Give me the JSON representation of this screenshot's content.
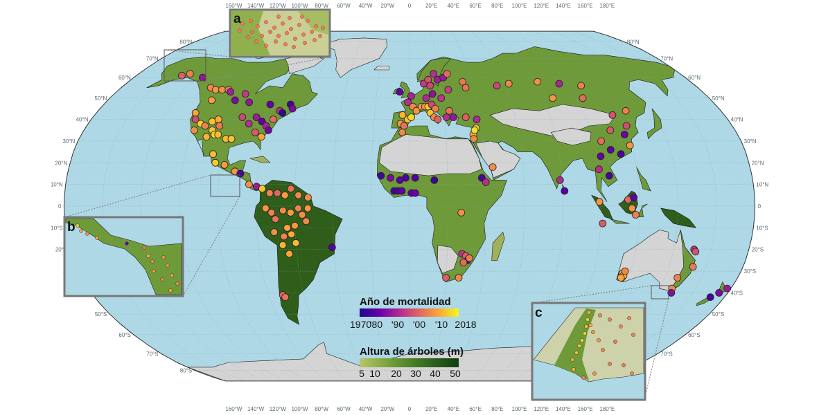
{
  "map": {
    "projection": "Robinson",
    "colors": {
      "ocean": "#aed8e6",
      "land_bare": "#d4d4d4",
      "forest_low": "#9fb25a",
      "forest_mid": "#6e9a3a",
      "forest_high": "#2f5e1a",
      "borders": "#1a1a1a",
      "graticule": "#7fa3b1",
      "inset_frame": "#777777"
    },
    "graticule": {
      "longitude_labels": [
        "160°W",
        "140°W",
        "120°W",
        "100°W",
        "80°W",
        "60°W",
        "40°W",
        "20°W",
        "0",
        "20°E",
        "40°E",
        "60°E",
        "80°E",
        "100°E",
        "120°E",
        "140°E",
        "160°E",
        "180°E"
      ],
      "latitude_labels": [
        "80°N",
        "70°N",
        "60°N",
        "50°N",
        "40°N",
        "30°N",
        "20°N",
        "10°N",
        "0",
        "10°S",
        "20°S",
        "30°S",
        "40°S",
        "50°S",
        "60°S",
        "70°S",
        "80°S"
      ]
    }
  },
  "insets": [
    {
      "letter": "a",
      "region": "southern Canada / Rocky Mountains"
    },
    {
      "letter": "b",
      "region": "Central America / Panama"
    },
    {
      "letter": "c",
      "region": "southwest Australia"
    }
  ],
  "legend_mortality": {
    "title": "Año de mortalidad",
    "ticks": [
      "1970",
      "'80",
      "'90",
      "'00",
      "'10",
      "2018"
    ],
    "colors": [
      "#1a0b8c",
      "#6a00a8",
      "#b12a90",
      "#e16462",
      "#fca636",
      "#f0f921"
    ]
  },
  "legend_height": {
    "title": "Altura de árboles (m)",
    "ticks": [
      "5",
      "10",
      "20",
      "30",
      "40",
      "50"
    ],
    "colors": [
      "#b9c46a",
      "#8cae46",
      "#5f9232",
      "#3f7622",
      "#27591a",
      "#0f3d0e"
    ]
  },
  "sites": [
    {
      "lon": -150,
      "lat": 61,
      "year": 1998
    },
    {
      "lon": -146,
      "lat": 62,
      "year": 2003
    },
    {
      "lon": -135,
      "lat": 60,
      "year": 1985
    },
    {
      "lon": -124,
      "lat": 55,
      "year": 2004
    },
    {
      "lon": -120,
      "lat": 54,
      "year": 2006
    },
    {
      "lon": -116,
      "lat": 54,
      "year": 2005
    },
    {
      "lon": -112,
      "lat": 54,
      "year": 2003
    },
    {
      "lon": -110,
      "lat": 53,
      "year": 1987
    },
    {
      "lon": -100,
      "lat": 52,
      "year": 1992
    },
    {
      "lon": -118,
      "lat": 49,
      "year": 2007
    },
    {
      "lon": -104,
      "lat": 49,
      "year": 1982
    },
    {
      "lon": -95,
      "lat": 48,
      "year": 1985
    },
    {
      "lon": -82,
      "lat": 47,
      "year": 1979
    },
    {
      "lon": -70,
      "lat": 47,
      "year": 1975
    },
    {
      "lon": -75,
      "lat": 44,
      "year": 1990
    },
    {
      "lon": -123,
      "lat": 43,
      "year": 2008
    },
    {
      "lon": -121,
      "lat": 40,
      "year": 1995
    },
    {
      "lon": -117,
      "lat": 38,
      "year": 2013
    },
    {
      "lon": -114,
      "lat": 37,
      "year": 2003
    },
    {
      "lon": -111,
      "lat": 39,
      "year": 2012
    },
    {
      "lon": -108,
      "lat": 40,
      "year": 2009
    },
    {
      "lon": -106,
      "lat": 37,
      "year": 2002
    },
    {
      "lon": -109,
      "lat": 35,
      "year": 2012
    },
    {
      "lon": -107,
      "lat": 33,
      "year": 2014
    },
    {
      "lon": -105,
      "lat": 33,
      "year": 2011
    },
    {
      "lon": -111,
      "lat": 32,
      "year": 2010
    },
    {
      "lon": -119,
      "lat": 35,
      "year": 2005
    },
    {
      "lon": -100,
      "lat": 31,
      "year": 2011
    },
    {
      "lon": -97,
      "lat": 31,
      "year": 2012
    },
    {
      "lon": -95,
      "lat": 41,
      "year": 1994
    },
    {
      "lon": -90,
      "lat": 38,
      "year": 1990
    },
    {
      "lon": -87,
      "lat": 41,
      "year": 1986
    },
    {
      "lon": -83,
      "lat": 39,
      "year": 1978
    },
    {
      "lon": -80,
      "lat": 37,
      "year": 1988
    },
    {
      "lon": -77,
      "lat": 40,
      "year": 2000
    },
    {
      "lon": -73,
      "lat": 43,
      "year": 1972
    },
    {
      "lon": -68,
      "lat": 45,
      "year": 1982
    },
    {
      "lon": -85,
      "lat": 34,
      "year": 1997
    },
    {
      "lon": -81,
      "lat": 32,
      "year": 2008
    },
    {
      "lon": -78,
      "lat": 35,
      "year": 1981
    },
    {
      "lon": -105,
      "lat": 24,
      "year": 2011
    },
    {
      "lon": -103,
      "lat": 20,
      "year": 2013
    },
    {
      "lon": -98,
      "lat": 19,
      "year": 2007
    },
    {
      "lon": -92,
      "lat": 16,
      "year": 2006
    },
    {
      "lon": -89,
      "lat": 15,
      "year": 1976
    },
    {
      "lon": -84,
      "lat": 10,
      "year": 2005
    },
    {
      "lon": -80,
      "lat": 9,
      "year": 1986
    },
    {
      "lon": -77,
      "lat": 8,
      "year": 2012
    },
    {
      "lon": -73,
      "lat": 6,
      "year": 2003
    },
    {
      "lon": -69,
      "lat": 6,
      "year": 1999
    },
    {
      "lon": -65,
      "lat": 5,
      "year": 2007
    },
    {
      "lon": -62,
      "lat": 8,
      "year": 2001
    },
    {
      "lon": -58,
      "lat": 5,
      "year": 2004
    },
    {
      "lon": -53,
      "lat": 4,
      "year": 2005
    },
    {
      "lon": -75,
      "lat": -1,
      "year": 2006
    },
    {
      "lon": -72,
      "lat": -3,
      "year": 2003
    },
    {
      "lon": -70,
      "lat": -6,
      "year": 2001
    },
    {
      "lon": -66,
      "lat": -2,
      "year": 2004
    },
    {
      "lon": -62,
      "lat": -3,
      "year": 2007
    },
    {
      "lon": -58,
      "lat": -1,
      "year": 2003
    },
    {
      "lon": -56,
      "lat": -4,
      "year": 2005
    },
    {
      "lon": -53,
      "lat": -1,
      "year": 2006
    },
    {
      "lon": -54,
      "lat": -7,
      "year": 2004
    },
    {
      "lon": -60,
      "lat": -9,
      "year": 2006
    },
    {
      "lon": -64,
      "lat": -10,
      "year": 2008
    },
    {
      "lon": -71,
      "lat": -12,
      "year": 2005
    },
    {
      "lon": -66,
      "lat": -14,
      "year": 2003
    },
    {
      "lon": -62,
      "lat": -13,
      "year": 2009
    },
    {
      "lon": -60,
      "lat": -17,
      "year": 2011
    },
    {
      "lon": -67,
      "lat": -18,
      "year": 2010
    },
    {
      "lon": -64,
      "lat": -22,
      "year": 2008
    },
    {
      "lon": -41,
      "lat": -19,
      "year": 1977
    },
    {
      "lon": -72,
      "lat": -41,
      "year": 1999
    },
    {
      "lon": -71,
      "lat": -42,
      "year": 2001
    },
    {
      "lon": -6,
      "lat": 53,
      "year": 1978
    },
    {
      "lon": 1,
      "lat": 51,
      "year": 1988
    },
    {
      "lon": -1,
      "lat": 48,
      "year": 1990
    },
    {
      "lon": 2,
      "lat": 46,
      "year": 2004
    },
    {
      "lon": 4,
      "lat": 44,
      "year": 2006
    },
    {
      "lon": -4,
      "lat": 42,
      "year": 2010
    },
    {
      "lon": -1,
      "lat": 40,
      "year": 2012
    },
    {
      "lon": -5,
      "lat": 38,
      "year": 2006
    },
    {
      "lon": -3,
      "lat": 37,
      "year": 2001
    },
    {
      "lon": 1,
      "lat": 41,
      "year": 2014
    },
    {
      "lon": 7,
      "lat": 46,
      "year": 2007
    },
    {
      "lon": 9,
      "lat": 46,
      "year": 2005
    },
    {
      "lon": 11,
      "lat": 46,
      "year": 2013
    },
    {
      "lon": 13,
      "lat": 47,
      "year": 1995
    },
    {
      "lon": 15,
      "lat": 45,
      "year": 2003
    },
    {
      "lon": 12,
      "lat": 43,
      "year": 2012
    },
    {
      "lon": 14,
      "lat": 41,
      "year": 2004
    },
    {
      "lon": 16,
      "lat": 40,
      "year": 1998
    },
    {
      "lon": 10,
      "lat": 50,
      "year": 1989
    },
    {
      "lon": 14,
      "lat": 52,
      "year": 1984
    },
    {
      "lon": 19,
      "lat": 50,
      "year": 1991
    },
    {
      "lon": 9,
      "lat": 57,
      "year": 1992
    },
    {
      "lon": 12,
      "lat": 59,
      "year": 1996
    },
    {
      "lon": 13,
      "lat": 56,
      "year": 1994
    },
    {
      "lon": 16,
      "lat": 62,
      "year": 1990
    },
    {
      "lon": 18,
      "lat": 59,
      "year": 1987
    },
    {
      "lon": 22,
      "lat": 60,
      "year": 1986
    },
    {
      "lon": 25,
      "lat": 62,
      "year": 2000
    },
    {
      "lon": 34,
      "lat": 58,
      "year": 2002
    },
    {
      "lon": 24,
      "lat": 54,
      "year": 1993
    },
    {
      "lon": 23,
      "lat": 44,
      "year": 2001
    },
    {
      "lon": 21,
      "lat": 41,
      "year": 1990
    },
    {
      "lon": 25,
      "lat": 41,
      "year": 1985
    },
    {
      "lon": 32,
      "lat": 41,
      "year": 1998
    },
    {
      "lon": 38,
      "lat": 40,
      "year": 1989
    },
    {
      "lon": 37,
      "lat": 36,
      "year": 2013
    },
    {
      "lon": 35,
      "lat": 33,
      "year": 2010
    },
    {
      "lon": 35,
      "lat": 31,
      "year": 2004
    },
    {
      "lon": 36,
      "lat": 35,
      "year": 2015
    },
    {
      "lon": 44,
      "lat": 18,
      "year": 2005
    },
    {
      "lon": -4,
      "lat": 34,
      "year": 2004
    },
    {
      "lon": -15,
      "lat": 14,
      "year": 1975
    },
    {
      "lon": -10,
      "lat": 13,
      "year": 1982
    },
    {
      "lon": -5,
      "lat": 12,
      "year": 1978
    },
    {
      "lon": -2,
      "lat": 13,
      "year": 1976
    },
    {
      "lon": 3,
      "lat": 13,
      "year": 1977
    },
    {
      "lon": 13,
      "lat": 12,
      "year": 1974
    },
    {
      "lon": -8,
      "lat": 7,
      "year": 1975
    },
    {
      "lon": -6,
      "lat": 7,
      "year": 1976
    },
    {
      "lon": -4,
      "lat": 7,
      "year": 1978
    },
    {
      "lon": 1,
      "lat": 6,
      "year": 1979
    },
    {
      "lon": 3,
      "lat": 6,
      "year": 1980
    },
    {
      "lon": 38,
      "lat": 13,
      "year": 1976
    },
    {
      "lon": 40,
      "lat": 11,
      "year": 1990
    },
    {
      "lon": 27,
      "lat": -3,
      "year": 2005
    },
    {
      "lon": 28,
      "lat": -22,
      "year": 1991
    },
    {
      "lon": 30,
      "lat": -23,
      "year": 1998
    },
    {
      "lon": 31,
      "lat": -25,
      "year": 1979
    },
    {
      "lon": 29,
      "lat": -26,
      "year": 2000
    },
    {
      "lon": 32,
      "lat": -24,
      "year": 2002
    },
    {
      "lon": 20,
      "lat": -33,
      "year": 1998
    },
    {
      "lon": 27,
      "lat": -33,
      "year": 2004
    },
    {
      "lon": 35,
      "lat": 55,
      "year": 2001
    },
    {
      "lon": 55,
      "lat": 56,
      "year": 1994
    },
    {
      "lon": 63,
      "lat": 57,
      "year": 2004
    },
    {
      "lon": 82,
      "lat": 58,
      "year": 2005
    },
    {
      "lon": 95,
      "lat": 57,
      "year": 1988
    },
    {
      "lon": 108,
      "lat": 56,
      "year": 2003
    },
    {
      "lon": 104,
      "lat": 50,
      "year": 2000
    },
    {
      "lon": 86,
      "lat": 50,
      "year": 2006
    },
    {
      "lon": 116,
      "lat": 42,
      "year": 1996
    },
    {
      "lon": 125,
      "lat": 44,
      "year": 2003
    },
    {
      "lon": 121,
      "lat": 37,
      "year": 1995
    },
    {
      "lon": 118,
      "lat": 33,
      "year": 1980
    },
    {
      "lon": 111,
      "lat": 35,
      "year": 1997
    },
    {
      "lon": 104,
      "lat": 30,
      "year": 2000
    },
    {
      "lon": 113,
      "lat": 24,
      "year": 1976
    },
    {
      "lon": 108,
      "lat": 26,
      "year": 1978
    },
    {
      "lon": 102,
      "lat": 23,
      "year": 1979
    },
    {
      "lon": 119,
      "lat": 28,
      "year": 2006
    },
    {
      "lon": 81,
      "lat": 7,
      "year": 1977
    },
    {
      "lon": 79,
      "lat": 12,
      "year": 1989
    },
    {
      "lon": 100,
      "lat": 17,
      "year": 1990
    },
    {
      "lon": 105,
      "lat": 14,
      "year": 1975
    },
    {
      "lon": 99,
      "lat": 2,
      "year": 2006
    },
    {
      "lon": 101,
      "lat": -8,
      "year": 1997
    },
    {
      "lon": 114,
      "lat": 3,
      "year": 1999
    },
    {
      "lon": 117,
      "lat": 4,
      "year": 1978
    },
    {
      "lon": 116,
      "lat": -1,
      "year": 2006
    },
    {
      "lon": 118,
      "lat": -4,
      "year": 2003
    },
    {
      "lon": 116,
      "lat": -31,
      "year": 2010
    },
    {
      "lon": 117,
      "lat": -32,
      "year": 2011
    },
    {
      "lon": 116,
      "lat": -33,
      "year": 2008
    },
    {
      "lon": 117,
      "lat": -30,
      "year": 2004
    },
    {
      "lon": 151,
      "lat": -20,
      "year": 1991
    },
    {
      "lon": 152,
      "lat": -21,
      "year": 1996
    },
    {
      "lon": 153,
      "lat": -28,
      "year": 2002
    },
    {
      "lon": 147,
      "lat": -33,
      "year": 2003
    },
    {
      "lon": 147,
      "lat": -38,
      "year": 2004
    },
    {
      "lon": 148,
      "lat": -40,
      "year": 1983
    },
    {
      "lon": 172,
      "lat": -42,
      "year": 1975
    },
    {
      "lon": 175,
      "lat": -40,
      "year": 1982
    },
    {
      "lon": 178,
      "lat": -38,
      "year": 1986
    }
  ]
}
